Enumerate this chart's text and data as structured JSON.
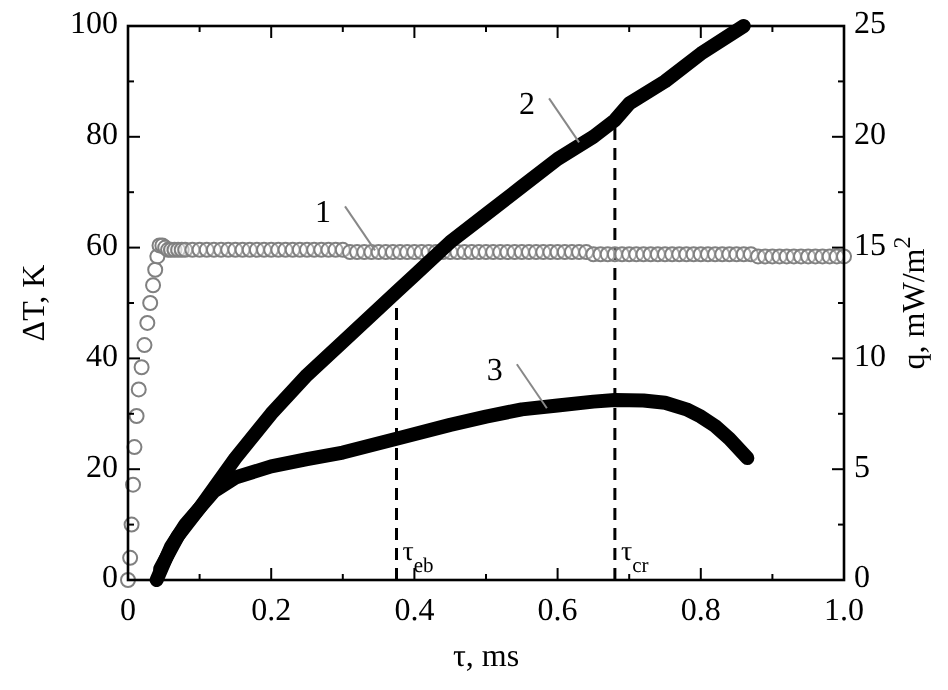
{
  "chart_data": {
    "type": "line",
    "xlabel": "τ, ms",
    "ylabel": "ΔT, K",
    "y2label": "q, mW/m$^{2}$",
    "xlim": [
      0,
      1.0
    ],
    "xticks": [
      0,
      {
        "value": 0.1,
        "label": null
      },
      0.2,
      {
        "value": 0.3,
        "label": null
      },
      0.4,
      {
        "value": 0.5,
        "label": null
      },
      0.6,
      {
        "value": 0.7,
        "label": null
      },
      0.8,
      {
        "value": 0.9,
        "label": null
      },
      "1.0"
    ],
    "ylim": [
      0,
      100
    ],
    "yticks": [
      0,
      {
        "value": 10,
        "label": null
      },
      20,
      {
        "value": 30,
        "label": null
      },
      40,
      {
        "value": 50,
        "label": null
      },
      60,
      {
        "value": 70,
        "label": null
      },
      80,
      {
        "value": 90,
        "label": null
      },
      100
    ],
    "y2lim": [
      0,
      25
    ],
    "y2ticks": [
      0,
      {
        "value": 2.5,
        "label": null
      },
      5,
      {
        "value": 7.5,
        "label": null
      },
      10,
      {
        "value": 12.5,
        "label": null
      },
      15,
      {
        "value": 17.5,
        "label": null
      },
      20,
      {
        "value": 22.5,
        "label": null
      },
      25
    ],
    "grid": false,
    "series": [
      {
        "type": "scatter",
        "axis": "y2",
        "marker": "circle",
        "color": "#808080",
        "x": [
          0,
          0.003,
          0.005,
          0.007,
          0.009,
          0.012,
          0.015,
          0.019,
          0.023,
          0.027,
          0.031,
          0.035,
          0.038,
          0.041,
          0.044,
          0.048,
          0.052,
          0.056,
          0.06,
          0.065,
          0.07,
          0.075,
          0.08,
          0.09,
          0.1,
          0.11,
          0.12,
          0.13,
          0.14,
          0.15,
          0.16,
          0.17,
          0.18,
          0.19,
          0.2,
          0.21,
          0.22,
          0.23,
          0.24,
          0.25,
          0.26,
          0.27,
          0.28,
          0.29,
          0.3,
          0.31,
          0.32,
          0.33,
          0.34,
          0.35,
          0.36,
          0.37,
          0.38,
          0.39,
          0.4,
          0.41,
          0.42,
          0.43,
          0.44,
          0.45,
          0.46,
          0.47,
          0.48,
          0.49,
          0.5,
          0.51,
          0.52,
          0.53,
          0.54,
          0.55,
          0.56,
          0.57,
          0.58,
          0.59,
          0.6,
          0.61,
          0.62,
          0.63,
          0.64,
          0.65,
          0.66,
          0.67,
          0.68,
          0.69,
          0.7,
          0.71,
          0.72,
          0.73,
          0.74,
          0.75,
          0.76,
          0.77,
          0.78,
          0.79,
          0.8,
          0.81,
          0.82,
          0.83,
          0.84,
          0.85,
          0.86,
          0.87,
          0.88,
          0.89,
          0.9,
          0.91,
          0.92,
          0.93,
          0.94,
          0.95,
          0.96,
          0.97,
          0.98,
          0.99,
          1.0
        ],
        "values": [
          0,
          1,
          2.5,
          4.3,
          6,
          7.4,
          8.6,
          9.6,
          10.6,
          11.6,
          12.5,
          13.3,
          14,
          14.6,
          15.1,
          15.1,
          15,
          14.9,
          14.9,
          14.9,
          14.9,
          14.9,
          14.9,
          14.9,
          14.9,
          14.9,
          14.9,
          14.9,
          14.9,
          14.9,
          14.9,
          14.9,
          14.9,
          14.9,
          14.9,
          14.9,
          14.9,
          14.9,
          14.9,
          14.9,
          14.9,
          14.9,
          14.9,
          14.9,
          14.9,
          14.8,
          14.8,
          14.8,
          14.8,
          14.8,
          14.8,
          14.8,
          14.8,
          14.8,
          14.8,
          14.8,
          14.8,
          14.8,
          14.8,
          14.8,
          14.8,
          14.8,
          14.8,
          14.8,
          14.8,
          14.8,
          14.8,
          14.8,
          14.8,
          14.8,
          14.8,
          14.8,
          14.8,
          14.8,
          14.8,
          14.8,
          14.8,
          14.8,
          14.8,
          14.7,
          14.7,
          14.7,
          14.7,
          14.7,
          14.7,
          14.7,
          14.7,
          14.7,
          14.7,
          14.7,
          14.7,
          14.7,
          14.7,
          14.7,
          14.7,
          14.7,
          14.7,
          14.7,
          14.7,
          14.7,
          14.7,
          14.7,
          14.6,
          14.6,
          14.6,
          14.6,
          14.6,
          14.6,
          14.6,
          14.6,
          14.6,
          14.6,
          14.6,
          14.6,
          14.6
        ]
      },
      {
        "axis": "y",
        "color": "#000000",
        "x": [
          0.04,
          0.06,
          0.08,
          0.1,
          0.15,
          0.2,
          0.25,
          0.3,
          0.375,
          0.4,
          0.45,
          0.5,
          0.55,
          0.6,
          0.65,
          0.68,
          0.7,
          0.75,
          0.8,
          0.86
        ],
        "values": [
          0,
          6,
          10,
          13,
          22,
          30,
          37,
          43,
          52,
          55,
          61,
          66,
          71,
          76,
          80,
          83,
          86,
          90,
          95,
          100
        ]
      },
      {
        "axis": "y",
        "color": "#000000",
        "x": [
          0.045,
          0.07,
          0.1,
          0.12,
          0.15,
          0.2,
          0.25,
          0.3,
          0.375,
          0.45,
          0.5,
          0.55,
          0.6,
          0.65,
          0.68,
          0.72,
          0.75,
          0.78,
          0.8,
          0.82,
          0.84,
          0.865
        ],
        "values": [
          2,
          8,
          13,
          16,
          18.5,
          20.5,
          21.8,
          23,
          25.5,
          28,
          29.5,
          30.8,
          31.5,
          32.2,
          32.5,
          32.4,
          32,
          30.8,
          29.5,
          27.8,
          25.5,
          22
        ]
      }
    ],
    "ref_lines": [
      {
        "axis": "x",
        "value": 0.375,
        "label": "τ$_{eb}$",
        "line_style": "dashed",
        "color": "#000000"
      },
      {
        "axis": "x",
        "value": 0.68,
        "label": "τ$_{cr}$",
        "line_style": "dashed",
        "color": "#000000"
      }
    ],
    "annotations": [
      {
        "text": "1",
        "x": 0.345,
        "y": 59.5
      },
      {
        "text": "2",
        "x": 0.63,
        "y": 79
      },
      {
        "text": "3",
        "x": 0.585,
        "y": 31
      }
    ]
  }
}
